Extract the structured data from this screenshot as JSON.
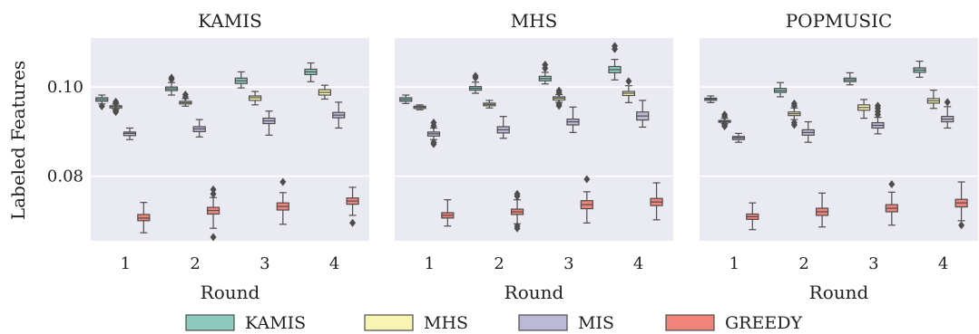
{
  "chart_data": {
    "type": "boxplot",
    "ylabel": "Labeled Features",
    "xlabel": "Round",
    "categories": [
      "1",
      "2",
      "3",
      "4"
    ],
    "ylim": [
      0.0655,
      0.111
    ],
    "yticks": [
      0.08,
      0.1
    ],
    "ytick_labels": [
      "0.08",
      "0.10"
    ],
    "grid": true,
    "legend_position": "bottom",
    "series_colors": {
      "KAMIS": "#8fcbbd",
      "MHS": "#f8f4b2",
      "MIS": "#bbb9d6",
      "GREEDY": "#f0837a"
    },
    "legend": [
      {
        "name": "KAMIS",
        "color": "#8fcbbd"
      },
      {
        "name": "MHS",
        "color": "#f8f4b2"
      },
      {
        "name": "MIS",
        "color": "#bbb9d6"
      },
      {
        "name": "GREEDY",
        "color": "#f0837a"
      }
    ],
    "panels": [
      {
        "title": "KAMIS",
        "rounds": [
          {
            "KAMIS": [
              0.0962,
              0.0968,
              0.0972,
              0.0976,
              0.0982,
              [
                0.0957
              ]
            ],
            "MHS": [
              0.095,
              0.0953,
              0.0956,
              0.0958,
              0.0962,
              [
                0.0944,
                0.0947,
                0.0964,
                0.0967
              ]
            ],
            "MIS": [
              0.0882,
              0.0891,
              0.0896,
              0.0899,
              0.0908,
              []
            ],
            "GREEDY": [
              0.0673,
              0.07,
              0.0706,
              0.0714,
              0.0741,
              []
            ]
          },
          {
            "KAMIS": [
              0.0982,
              0.0992,
              0.0996,
              0.1,
              0.101,
              [
                0.1021,
                0.1017
              ]
            ],
            "MHS": [
              0.0957,
              0.0962,
              0.0965,
              0.0968,
              0.0974,
              [
                0.0978,
                0.0983
              ]
            ],
            "MIS": [
              0.0888,
              0.09,
              0.0906,
              0.0911,
              0.0927,
              []
            ],
            "GREEDY": [
              0.0683,
              0.0715,
              0.0723,
              0.073,
              0.0752,
              [
                0.0663,
                0.077,
                0.076
              ]
            ]
          },
          {
            "KAMIS": [
              0.0998,
              0.1008,
              0.1014,
              0.102,
              0.1034,
              []
            ],
            "MHS": [
              0.096,
              0.097,
              0.0976,
              0.098,
              0.099,
              []
            ],
            "MIS": [
              0.0892,
              0.0918,
              0.0924,
              0.093,
              0.0946,
              []
            ],
            "GREEDY": [
              0.0692,
              0.0724,
              0.0732,
              0.074,
              0.0763,
              [
                0.0787
              ]
            ]
          },
          {
            "KAMIS": [
              0.1012,
              0.1028,
              0.1034,
              0.104,
              0.1054,
              []
            ],
            "MHS": [
              0.0973,
              0.0982,
              0.0988,
              0.0994,
              0.1004,
              []
            ],
            "MIS": [
              0.0908,
              0.0931,
              0.0937,
              0.0943,
              0.0966,
              []
            ],
            "GREEDY": [
              0.0712,
              0.0737,
              0.0744,
              0.0751,
              0.0775,
              [
                0.0695
              ]
            ]
          }
        ]
      },
      {
        "title": "MHS",
        "rounds": [
          {
            "KAMIS": [
              0.0963,
              0.0968,
              0.0972,
              0.0976,
              0.0982,
              []
            ],
            "MHS": [
              0.0949,
              0.0952,
              0.0955,
              0.0957,
              0.096,
              []
            ],
            "MIS": [
              0.0882,
              0.089,
              0.0895,
              0.0899,
              0.0908,
              [
                0.0872,
                0.0876,
                0.0913,
                0.092
              ]
            ],
            "GREEDY": [
              0.0688,
              0.0706,
              0.0712,
              0.0718,
              0.0747,
              []
            ]
          },
          {
            "KAMIS": [
              0.0986,
              0.0993,
              0.0997,
              0.1001,
              0.1011,
              [
                0.1021,
                0.1025
              ]
            ],
            "MHS": [
              0.0953,
              0.0958,
              0.0961,
              0.0964,
              0.097,
              []
            ],
            "MIS": [
              0.0885,
              0.0897,
              0.0904,
              0.0911,
              0.0934,
              []
            ],
            "GREEDY": [
              0.0693,
              0.0714,
              0.072,
              0.0726,
              0.0747,
              [
                0.0683,
                0.0688,
                0.0755,
                0.076
              ]
            ]
          },
          {
            "KAMIS": [
              0.1007,
              0.1014,
              0.1019,
              0.1024,
              0.1033,
              [
                0.1042,
                0.105
              ]
            ],
            "MHS": [
              0.0966,
              0.0971,
              0.0975,
              0.0978,
              0.0983,
              [
                0.0958,
                0.0962,
                0.0987,
                0.0992
              ]
            ],
            "MIS": [
              0.0898,
              0.0915,
              0.0922,
              0.0928,
              0.0955,
              []
            ],
            "GREEDY": [
              0.0695,
              0.0727,
              0.0736,
              0.0745,
              0.0765,
              [
                0.0793
              ]
            ]
          },
          {
            "KAMIS": [
              0.1016,
              0.1032,
              0.1039,
              0.1046,
              0.1062,
              [
                0.1085,
                0.1092
              ]
            ],
            "MHS": [
              0.0965,
              0.0981,
              0.0986,
              0.099,
              0.1003,
              [
                0.1013
              ]
            ],
            "MIS": [
              0.091,
              0.0926,
              0.0935,
              0.0944,
              0.097,
              []
            ],
            "GREEDY": [
              0.0702,
              0.0734,
              0.0742,
              0.075,
              0.0785,
              []
            ]
          }
        ]
      },
      {
        "title": "POPMUSIC",
        "rounds": [
          {
            "KAMIS": [
              0.0965,
              0.097,
              0.0973,
              0.0975,
              0.098,
              []
            ],
            "MHS": [
              0.0918,
              0.0921,
              0.0923,
              0.0925,
              0.093,
              [
                0.0912,
                0.0915,
                0.0934,
                0.0938
              ]
            ],
            "MIS": [
              0.0876,
              0.0882,
              0.0886,
              0.0889,
              0.0896,
              []
            ],
            "GREEDY": [
              0.068,
              0.0703,
              0.0709,
              0.0715,
              0.074,
              []
            ]
          },
          {
            "KAMIS": [
              0.0978,
              0.0988,
              0.0992,
              0.0997,
              0.101,
              []
            ],
            "MHS": [
              0.0927,
              0.0936,
              0.094,
              0.0944,
              0.0953,
              [
                0.0915,
                0.092,
                0.0958,
                0.0963
              ]
            ],
            "MIS": [
              0.0876,
              0.0892,
              0.0898,
              0.0904,
              0.0922,
              []
            ],
            "GREEDY": [
              0.0686,
              0.0712,
              0.072,
              0.0728,
              0.0762,
              []
            ]
          },
          {
            "KAMIS": [
              0.1005,
              0.1012,
              0.1016,
              0.102,
              0.1032,
              []
            ],
            "MHS": [
              0.093,
              0.0948,
              0.0954,
              0.096,
              0.0972,
              []
            ],
            "MIS": [
              0.0895,
              0.0908,
              0.0914,
              0.092,
              0.0932,
              [
                0.0938,
                0.0945,
                0.0952,
                0.0958
              ]
            ],
            "GREEDY": [
              0.069,
              0.072,
              0.0728,
              0.0736,
              0.0764,
              [
                0.0782
              ]
            ]
          },
          {
            "KAMIS": [
              0.1022,
              0.1033,
              0.1038,
              0.1043,
              0.1058,
              []
            ],
            "MHS": [
              0.0952,
              0.0964,
              0.0969,
              0.0974,
              0.0993,
              []
            ],
            "MIS": [
              0.0908,
              0.0922,
              0.0928,
              0.0934,
              0.0956,
              [
                0.0966
              ]
            ],
            "GREEDY": [
              0.07,
              0.0731,
              0.074,
              0.0748,
              0.0787,
              [
                0.069
              ]
            ]
          }
        ]
      }
    ]
  }
}
